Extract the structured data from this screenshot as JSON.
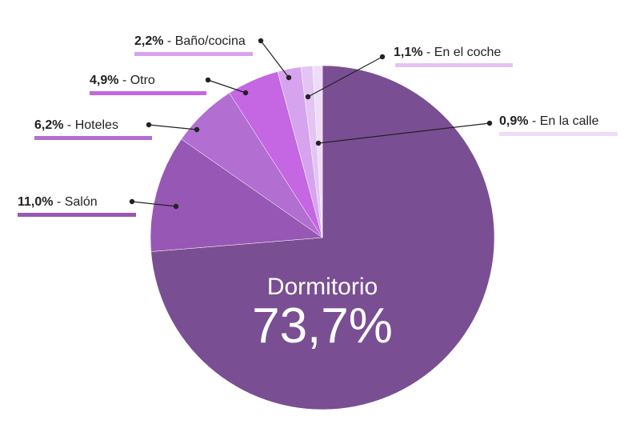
{
  "chart_data": {
    "type": "pie",
    "slices": [
      {
        "name": "Dormitorio",
        "value": 73.7,
        "label": "73,7%",
        "color": "#7a4e93"
      },
      {
        "name": "Salón",
        "value": 11.0,
        "label": "11,0%",
        "color": "#9757b4"
      },
      {
        "name": "Hoteles",
        "value": 6.2,
        "label": "6,2%",
        "color": "#b36ed1"
      },
      {
        "name": "Otro",
        "value": 4.9,
        "label": "4,9%",
        "color": "#c566e2"
      },
      {
        "name": "Baño/cocina",
        "value": 2.2,
        "label": "2,2%",
        "color": "#d6a3ef"
      },
      {
        "name": "En el coche",
        "value": 1.1,
        "label": "1,1%",
        "color": "#e3c4f3"
      },
      {
        "name": "En la calle",
        "value": 0.9,
        "label": "0,9%",
        "color": "#efdcf8"
      }
    ],
    "legend": "callouts",
    "colors": {
      "leader": "#222222",
      "text": "#222222",
      "center_text": "#ffffff"
    }
  }
}
